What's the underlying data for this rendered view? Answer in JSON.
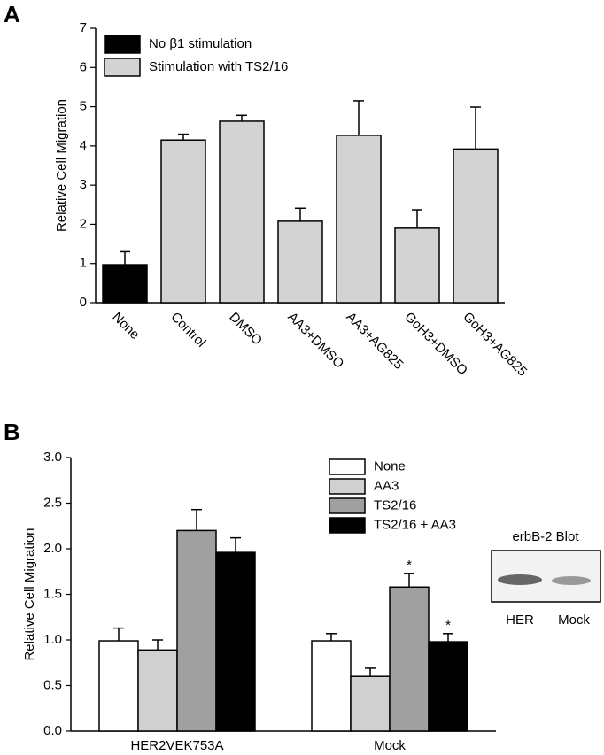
{
  "panel_labels": [
    "A",
    "B"
  ],
  "blot": {
    "title": "erbB-2 Blot",
    "lanes": [
      "HER",
      "Mock"
    ]
  },
  "chart_data": [
    {
      "type": "bar",
      "y_label": "Relative Cell Migration",
      "categories": [
        "None",
        "Control",
        "DMSO",
        "AA3+DMSO",
        "AA3+AG825",
        "GoH3+DMSO",
        "GoH3+AG825"
      ],
      "series": [
        {
          "name": "No β1 stimulation",
          "color": "#000000",
          "values": [
            0.97,
            null,
            null,
            null,
            null,
            null,
            null
          ],
          "errors": [
            0.33,
            null,
            null,
            null,
            null,
            null,
            null
          ]
        },
        {
          "name": "Stimulation with TS2/16",
          "color": "#d3d3d3",
          "values": [
            null,
            4.15,
            4.63,
            2.08,
            4.27,
            1.9,
            3.92
          ],
          "errors": [
            null,
            0.15,
            0.15,
            0.33,
            0.88,
            0.47,
            1.07
          ]
        }
      ],
      "ylim": [
        0,
        7
      ],
      "yticks": [
        0,
        1,
        2,
        3,
        4,
        5,
        6,
        7
      ],
      "grid": false,
      "legend": "upper left"
    },
    {
      "type": "bar",
      "y_label": "Relative Cell Migration",
      "categories": [
        "HER2VEK753A",
        "Mock"
      ],
      "series": [
        {
          "name": "None",
          "color": "#ffffff",
          "values": [
            0.99,
            0.99
          ],
          "errors": [
            0.14,
            0.08
          ]
        },
        {
          "name": "AA3",
          "color": "#d0d0d0",
          "values": [
            0.89,
            0.6
          ],
          "errors": [
            0.11,
            0.09
          ]
        },
        {
          "name": "TS2/16",
          "color": "#a0a0a0",
          "values": [
            2.2,
            1.58
          ],
          "errors": [
            0.23,
            0.15
          ],
          "annotations": [
            null,
            "*"
          ]
        },
        {
          "name": "TS2/16 + AA3",
          "color": "#000000",
          "values": [
            1.96,
            0.98
          ],
          "errors": [
            0.16,
            0.09
          ],
          "annotations": [
            null,
            "*"
          ]
        }
      ],
      "ylim": [
        0,
        3
      ],
      "yticks": [
        {
          "value": 0,
          "label": "0.0"
        },
        {
          "value": 0.5,
          "label": "0.5"
        },
        {
          "value": 1,
          "label": "1.0"
        },
        {
          "value": 1.5,
          "label": "1.5"
        },
        {
          "value": 2,
          "label": "2.0"
        },
        {
          "value": 2.5,
          "label": "2.5"
        },
        {
          "value": 3,
          "label": "3.0"
        }
      ],
      "grid": false,
      "legend": "upper right"
    }
  ]
}
